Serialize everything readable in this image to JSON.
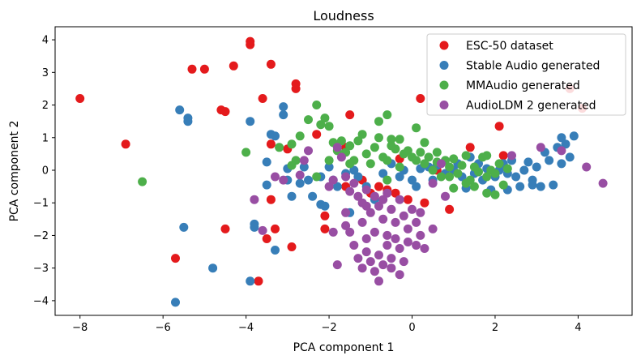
{
  "chart_data": {
    "type": "scatter",
    "title": "Loudness",
    "xlabel": "PCA component 1",
    "ylabel": "PCA component 2",
    "xlim": [
      -8.6,
      5.3
    ],
    "ylim": [
      -4.45,
      4.4
    ],
    "xticks": [
      -8,
      -6,
      -4,
      -2,
      0,
      2,
      4
    ],
    "yticks": [
      -4,
      -3,
      -2,
      -1,
      0,
      1,
      2,
      3,
      4
    ],
    "legend_location": "upper-right",
    "series": [
      {
        "name": "ESC-50 dataset",
        "color": "#e41a1c",
        "points": [
          [
            -8.0,
            2.2
          ],
          [
            -6.9,
            0.8
          ],
          [
            -5.7,
            -2.7
          ],
          [
            -5.3,
            3.1
          ],
          [
            -5.0,
            3.1
          ],
          [
            -4.6,
            1.85
          ],
          [
            -4.5,
            1.8
          ],
          [
            -4.5,
            -1.8
          ],
          [
            -4.3,
            3.2
          ],
          [
            -3.9,
            3.95
          ],
          [
            -3.9,
            3.85
          ],
          [
            -3.6,
            2.2
          ],
          [
            -3.4,
            3.25
          ],
          [
            -3.5,
            -2.1
          ],
          [
            -3.3,
            -1.8
          ],
          [
            -3.7,
            -3.4
          ],
          [
            -3.4,
            0.8
          ],
          [
            -3.4,
            -0.9
          ],
          [
            -3.0,
            0.65
          ],
          [
            -2.9,
            -2.35
          ],
          [
            -2.8,
            2.65
          ],
          [
            -2.8,
            2.5
          ],
          [
            -2.3,
            1.1
          ],
          [
            -2.1,
            -1.4
          ],
          [
            -2.1,
            -1.8
          ],
          [
            -1.6,
            0.7
          ],
          [
            -1.5,
            1.7
          ],
          [
            -1.6,
            -0.5
          ],
          [
            -1.2,
            -0.3
          ],
          [
            -1.0,
            -0.7
          ],
          [
            -0.8,
            -0.5
          ],
          [
            -0.6,
            -0.6
          ],
          [
            -0.4,
            -0.7
          ],
          [
            -0.1,
            -0.9
          ],
          [
            0.2,
            2.2
          ],
          [
            0.3,
            -1.0
          ],
          [
            0.9,
            -1.2
          ],
          [
            1.4,
            0.7
          ],
          [
            2.1,
            1.35
          ],
          [
            2.2,
            0.45
          ],
          [
            3.8,
            2.5
          ],
          [
            4.1,
            1.9
          ],
          [
            -0.3,
            0.35
          ],
          [
            0.6,
            0.0
          ]
        ]
      },
      {
        "name": "Stable Audio generated",
        "color": "#377eb8",
        "points": [
          [
            -5.6,
            1.85
          ],
          [
            -5.4,
            1.6
          ],
          [
            -5.4,
            1.5
          ],
          [
            -5.7,
            -4.05
          ],
          [
            -5.5,
            -1.75
          ],
          [
            -4.8,
            -3.0
          ],
          [
            -3.9,
            1.5
          ],
          [
            -3.8,
            -1.65
          ],
          [
            -3.8,
            -1.75
          ],
          [
            -3.9,
            -3.4
          ],
          [
            -3.3,
            -2.45
          ],
          [
            -3.4,
            1.1
          ],
          [
            -3.3,
            1.05
          ],
          [
            -3.5,
            0.25
          ],
          [
            -3.5,
            -0.45
          ],
          [
            -3.1,
            1.95
          ],
          [
            -3.1,
            1.7
          ],
          [
            -3.0,
            0.05
          ],
          [
            -3.0,
            -0.3
          ],
          [
            -2.9,
            -0.8
          ],
          [
            -2.7,
            -0.4
          ],
          [
            -2.6,
            0.1
          ],
          [
            -2.5,
            -0.3
          ],
          [
            -2.4,
            -0.8
          ],
          [
            -2.2,
            -1.05
          ],
          [
            -2.1,
            -1.1
          ],
          [
            -2.2,
            -0.2
          ],
          [
            -2.0,
            0.1
          ],
          [
            -1.9,
            -0.3
          ],
          [
            -1.8,
            -0.5
          ],
          [
            -1.6,
            -0.1
          ],
          [
            -1.5,
            -1.3
          ],
          [
            -1.4,
            0.0
          ],
          [
            -1.3,
            -0.2
          ],
          [
            -1.1,
            -0.5
          ],
          [
            -0.9,
            -0.9
          ],
          [
            -0.7,
            -0.1
          ],
          [
            -0.5,
            0.2
          ],
          [
            -0.3,
            -0.2
          ],
          [
            -0.2,
            0.0
          ],
          [
            0.0,
            -0.3
          ],
          [
            0.1,
            -0.5
          ],
          [
            0.2,
            0.05
          ],
          [
            0.4,
            0.1
          ],
          [
            0.5,
            -0.3
          ],
          [
            0.6,
            0.15
          ],
          [
            0.8,
            -0.1
          ],
          [
            1.0,
            0.0
          ],
          [
            1.1,
            0.2
          ],
          [
            1.2,
            -0.2
          ],
          [
            1.3,
            -0.55
          ],
          [
            1.5,
            -0.1
          ],
          [
            1.6,
            0.2
          ],
          [
            1.7,
            -0.3
          ],
          [
            1.9,
            -0.6
          ],
          [
            2.1,
            0.0
          ],
          [
            2.2,
            0.2
          ],
          [
            2.3,
            -0.1
          ],
          [
            2.4,
            0.3
          ],
          [
            2.5,
            -0.2
          ],
          [
            2.6,
            -0.5
          ],
          [
            2.7,
            0.0
          ],
          [
            2.8,
            0.25
          ],
          [
            2.9,
            -0.3
          ],
          [
            3.0,
            0.1
          ],
          [
            3.1,
            -0.5
          ],
          [
            3.2,
            0.55
          ],
          [
            3.3,
            0.3
          ],
          [
            3.4,
            -0.45
          ],
          [
            3.5,
            0.7
          ],
          [
            3.6,
            0.2
          ],
          [
            3.7,
            0.8
          ],
          [
            3.8,
            0.4
          ],
          [
            3.6,
            1.0
          ],
          [
            3.9,
            1.05
          ],
          [
            2.9,
            -0.45
          ],
          [
            2.3,
            -0.6
          ],
          [
            2.0,
            -0.2
          ],
          [
            1.8,
            0.05
          ],
          [
            1.4,
            0.4
          ]
        ]
      },
      {
        "name": "MMAudio generated",
        "color": "#4daf4a",
        "points": [
          [
            -6.5,
            -0.35
          ],
          [
            -4.0,
            0.55
          ],
          [
            -3.2,
            0.7
          ],
          [
            -2.9,
            0.8
          ],
          [
            -2.8,
            0.3
          ],
          [
            -2.7,
            1.05
          ],
          [
            -2.5,
            1.55
          ],
          [
            -2.3,
            2.0
          ],
          [
            -2.2,
            1.4
          ],
          [
            -2.1,
            1.6
          ],
          [
            -2.0,
            1.35
          ],
          [
            -1.9,
            0.85
          ],
          [
            -1.8,
            0.6
          ],
          [
            -1.7,
            0.9
          ],
          [
            -1.6,
            0.55
          ],
          [
            -1.5,
            0.75
          ],
          [
            -1.4,
            0.3
          ],
          [
            -1.3,
            0.9
          ],
          [
            -1.2,
            1.1
          ],
          [
            -1.1,
            0.5
          ],
          [
            -1.0,
            0.2
          ],
          [
            -0.9,
            0.7
          ],
          [
            -0.8,
            1.0
          ],
          [
            -0.7,
            0.4
          ],
          [
            -0.6,
            0.3
          ],
          [
            -0.5,
            0.95
          ],
          [
            -0.4,
            0.65
          ],
          [
            -0.3,
            0.1
          ],
          [
            -0.2,
            0.5
          ],
          [
            -0.1,
            0.6
          ],
          [
            0.0,
            0.4
          ],
          [
            0.1,
            0.3
          ],
          [
            0.2,
            0.55
          ],
          [
            0.3,
            0.2
          ],
          [
            0.4,
            0.4
          ],
          [
            0.5,
            0.0
          ],
          [
            0.6,
            0.25
          ],
          [
            0.7,
            -0.2
          ],
          [
            0.8,
            0.3
          ],
          [
            0.9,
            0.1
          ],
          [
            1.0,
            0.35
          ],
          [
            1.1,
            -0.1
          ],
          [
            1.2,
            0.15
          ],
          [
            1.3,
            0.45
          ],
          [
            1.4,
            -0.3
          ],
          [
            1.5,
            0.1
          ],
          [
            1.6,
            -0.05
          ],
          [
            1.7,
            0.4
          ],
          [
            1.8,
            -0.2
          ],
          [
            1.9,
            0.0
          ],
          [
            2.0,
            -0.1
          ],
          [
            2.1,
            0.2
          ],
          [
            2.2,
            -0.45
          ],
          [
            2.3,
            0.05
          ],
          [
            1.8,
            0.45
          ],
          [
            -0.6,
            1.7
          ],
          [
            -0.8,
            1.5
          ],
          [
            0.1,
            1.3
          ],
          [
            -2.9,
            0.15
          ],
          [
            -2.0,
            0.3
          ],
          [
            -1.5,
            0.2
          ],
          [
            -0.3,
            0.95
          ],
          [
            0.3,
            0.85
          ],
          [
            0.9,
            -0.2
          ],
          [
            1.3,
            -0.4
          ],
          [
            1.0,
            -0.55
          ],
          [
            -0.5,
            0.75
          ],
          [
            0.6,
            0.55
          ],
          [
            -2.3,
            -0.2
          ],
          [
            -0.6,
            -0.3
          ],
          [
            2.0,
            -0.75
          ],
          [
            1.8,
            -0.7
          ],
          [
            1.5,
            -0.5
          ]
        ]
      },
      {
        "name": "AudioLDM 2 generated",
        "color": "#984ea3",
        "points": [
          [
            -3.8,
            -0.9
          ],
          [
            -3.6,
            -1.85
          ],
          [
            -3.3,
            -0.2
          ],
          [
            -3.1,
            -0.3
          ],
          [
            -2.7,
            -0.15
          ],
          [
            -2.6,
            0.3
          ],
          [
            -2.5,
            0.6
          ],
          [
            -2.0,
            -0.5
          ],
          [
            -1.9,
            -0.3
          ],
          [
            -1.8,
            0.7
          ],
          [
            -1.7,
            0.4
          ],
          [
            -1.6,
            -0.2
          ],
          [
            -1.5,
            -0.65
          ],
          [
            -1.4,
            -0.4
          ],
          [
            -1.3,
            -0.8
          ],
          [
            -1.2,
            -1.0
          ],
          [
            -1.1,
            -0.6
          ],
          [
            -1.0,
            -1.3
          ],
          [
            -0.9,
            -0.8
          ],
          [
            -0.8,
            -1.1
          ],
          [
            -0.7,
            -1.5
          ],
          [
            -0.6,
            -0.7
          ],
          [
            -0.5,
            -1.2
          ],
          [
            -0.4,
            -1.6
          ],
          [
            -0.3,
            -0.9
          ],
          [
            -0.2,
            -1.4
          ],
          [
            -0.1,
            -1.8
          ],
          [
            0.0,
            -1.2
          ],
          [
            0.1,
            -1.6
          ],
          [
            0.2,
            -2.0
          ],
          [
            -1.6,
            -1.3
          ],
          [
            -1.5,
            -1.9
          ],
          [
            -1.4,
            -2.3
          ],
          [
            -1.3,
            -2.7
          ],
          [
            -1.2,
            -3.0
          ],
          [
            -1.1,
            -2.5
          ],
          [
            -1.0,
            -2.8
          ],
          [
            -0.9,
            -3.1
          ],
          [
            -0.8,
            -2.6
          ],
          [
            -0.7,
            -2.9
          ],
          [
            -0.6,
            -2.3
          ],
          [
            -0.5,
            -2.7
          ],
          [
            -0.4,
            -2.1
          ],
          [
            -0.3,
            -2.4
          ],
          [
            -0.2,
            -2.8
          ],
          [
            -0.1,
            -2.2
          ],
          [
            -0.8,
            -3.4
          ],
          [
            -1.8,
            -2.9
          ],
          [
            -0.5,
            -3.0
          ],
          [
            -0.3,
            -3.2
          ],
          [
            -1.9,
            -1.9
          ],
          [
            -0.9,
            -1.9
          ],
          [
            -0.6,
            -2.0
          ],
          [
            0.2,
            -1.3
          ],
          [
            0.5,
            -0.4
          ],
          [
            0.5,
            -1.8
          ],
          [
            0.3,
            -2.4
          ],
          [
            -1.1,
            -1.1
          ],
          [
            -0.7,
            -0.9
          ],
          [
            0.1,
            -2.3
          ],
          [
            0.7,
            0.2
          ],
          [
            0.8,
            -0.8
          ],
          [
            2.4,
            0.45
          ],
          [
            3.6,
            0.6
          ],
          [
            4.2,
            0.1
          ],
          [
            4.6,
            -0.4
          ],
          [
            3.1,
            0.7
          ],
          [
            -1.6,
            -1.7
          ],
          [
            -1.2,
            -1.6
          ],
          [
            -1.1,
            -2.1
          ]
        ]
      }
    ]
  }
}
